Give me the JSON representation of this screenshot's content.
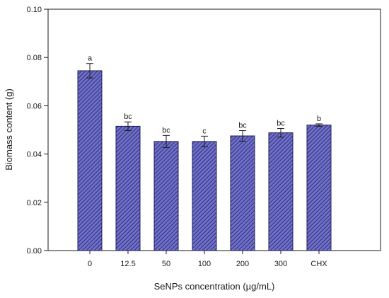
{
  "chart_data": {
    "type": "bar",
    "title": "",
    "xlabel": "SeNPs concentration (µg/mL)",
    "ylabel": "Biomass content (g)",
    "ylim": [
      0,
      0.1
    ],
    "yticks": [
      "0.00",
      "0.02",
      "0.04",
      "0.06",
      "0.08",
      "0.10"
    ],
    "categories": [
      "0",
      "12.5",
      "50",
      "100",
      "200",
      "300",
      "CHX"
    ],
    "values": [
      0.0745,
      0.0515,
      0.0452,
      0.0452,
      0.0475,
      0.0488,
      0.052
    ],
    "error": [
      0.003,
      0.0018,
      0.0025,
      0.0022,
      0.0022,
      0.0018,
      0.0005
    ],
    "significance_labels": [
      "a",
      "bc",
      "bc",
      "c",
      "bc",
      "bc",
      "b"
    ],
    "bar_fill": "#7070cc",
    "hatch_color": "#1e1e5a",
    "grid": false,
    "legend": "none"
  }
}
